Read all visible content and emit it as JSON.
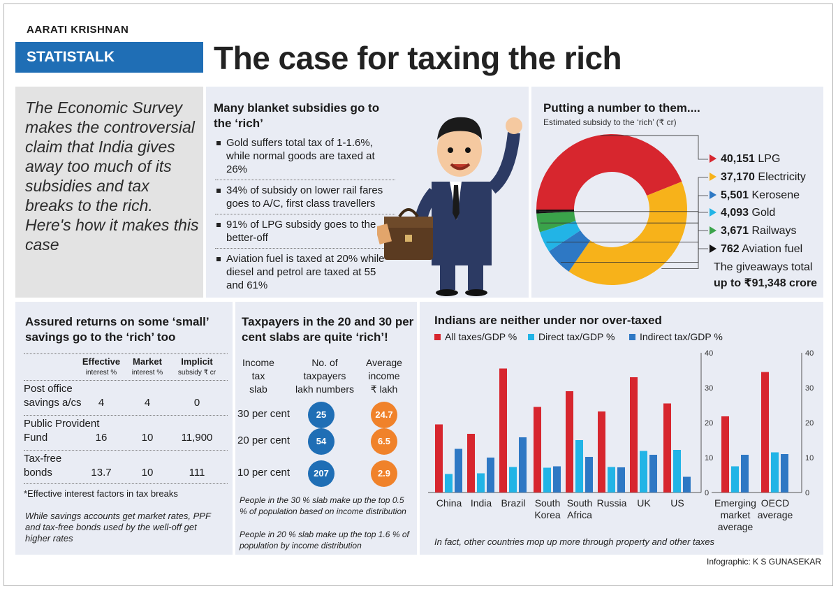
{
  "header": {
    "author": "AARATI KRISHNAN",
    "tag": "STATISTALK",
    "title": "The case for taxing the rich"
  },
  "intro": {
    "text": "The Economic Survey makes the controversial claim that India gives away too much of its subsidies and tax breaks to the rich. Here's how it makes this case"
  },
  "subsidies": {
    "title": "Many blanket subsidies go to the ‘rich’",
    "items": [
      "Gold suffers total tax of 1-1.6%, while normal goods are taxed at 26%",
      "34% of subsidy on lower rail fares goes to A/C, first class travellers",
      "91% of LPG subsidy goes to the better-off",
      "Aviation fuel is taxed at 20% while diesel and petrol are taxed at 55 and 61%"
    ]
  },
  "pie": {
    "title": "Putting a number to them....",
    "subtitle": "Estimated subsidy to the ‘rich’ (₹ cr)",
    "total_line1": "The giveaways total",
    "total_line2": "up to ₹91,348 crore",
    "slices": [
      {
        "value": "40,151",
        "label": "LPG",
        "color": "#d7262e"
      },
      {
        "value": "37,170",
        "label": "Electricity",
        "color": "#f7b21a"
      },
      {
        "value": "5,501",
        "label": "Kerosene",
        "color": "#2e78c4"
      },
      {
        "value": "4,093",
        "label": "Gold",
        "color": "#22b4e6"
      },
      {
        "value": "3,671",
        "label": "Railways",
        "color": "#3aa34a"
      },
      {
        "value": "762",
        "label": "Aviation fuel",
        "color": "#111111"
      }
    ]
  },
  "savings": {
    "title": "Assured returns on some ‘small’ savings go to the ‘rich’ too",
    "col1": "Effective",
    "col1b": "interest %",
    "col2": "Market",
    "col2b": "interest %",
    "col3": "Implicit",
    "col3b": "subsidy ₹ cr",
    "rows": [
      {
        "name1": "Post office",
        "name2": "savings a/cs",
        "eff": "4",
        "mkt": "4",
        "sub": "0"
      },
      {
        "name1": "Public Provident",
        "name2": "Fund",
        "eff": "16",
        "mkt": "10",
        "sub": "11,900"
      },
      {
        "name1": "Tax-free",
        "name2": "bonds",
        "eff": "13.7",
        "mkt": "10",
        "sub": "111"
      }
    ],
    "footnote": "*Effective interest factors in tax breaks",
    "note": "While savings accounts get market rates, PPF and tax-free bonds used by the well-off get higher rates"
  },
  "taxpayers": {
    "title": "Taxpayers in the 20 and 30 per cent slabs are quite ‘rich’!",
    "h1a": "Income",
    "h1b": "tax",
    "h1c": "slab",
    "h2a": "No. of",
    "h2b": "taxpayers",
    "h2c": "lakh numbers",
    "h3a": "Average",
    "h3b": "income",
    "h3c": "₹ lakh",
    "rows": [
      {
        "slab": "30 per cent",
        "count": "25",
        "income": "24.7"
      },
      {
        "slab": "20 per cent",
        "count": "54",
        "income": "6.5"
      },
      {
        "slab": "10 per cent",
        "count": "207",
        "income": "2.9"
      }
    ],
    "note1": "People in the 30 % slab make up the top 0.5 % of population based on income distribution",
    "note2": "People in 20 % slab make up the top 1.6 % of population by income distribution",
    "colors": {
      "count": "#1f6eb5",
      "income": "#f0822a"
    }
  },
  "chart_data": {
    "type": "bar",
    "title": "Indians are neither under nor over-taxed",
    "series": [
      {
        "name": "All taxes/GDP %",
        "color": "#d7262e",
        "values": [
          19.5,
          16.8,
          35.5,
          24.5,
          29,
          23.2,
          33,
          25.5,
          21.8,
          34.5
        ]
      },
      {
        "name": "Direct tax/GDP %",
        "color": "#22b4e6",
        "values": [
          5.3,
          5.5,
          7.3,
          7.1,
          15,
          7.3,
          11.9,
          12.2,
          7.5,
          11.5
        ]
      },
      {
        "name": "Indirect tax/GDP %",
        "color": "#2e78c4",
        "values": [
          12.5,
          10,
          15.8,
          7.5,
          10.2,
          7.2,
          10.8,
          4.5,
          10.8,
          11
        ]
      }
    ],
    "categories": [
      {
        "l1": "China",
        "l2": ""
      },
      {
        "l1": "India",
        "l2": ""
      },
      {
        "l1": "Brazil",
        "l2": ""
      },
      {
        "l1": "South",
        "l2": "Korea"
      },
      {
        "l1": "South",
        "l2": "Africa"
      },
      {
        "l1": "Russia",
        "l2": ""
      },
      {
        "l1": "UK",
        "l2": ""
      },
      {
        "l1": "US",
        "l2": ""
      },
      {
        "l1": "Emerging",
        "l2": "market",
        "l3": "average"
      },
      {
        "l1": "OECD",
        "l2": "average",
        "l3": ""
      }
    ],
    "ylim": [
      0,
      40
    ],
    "yticks": [
      "0",
      "10",
      "20",
      "30",
      "40"
    ],
    "note": "In fact, other countries mop up more through property and other taxes"
  },
  "credit": "Infographic: K S GUNASEKAR"
}
